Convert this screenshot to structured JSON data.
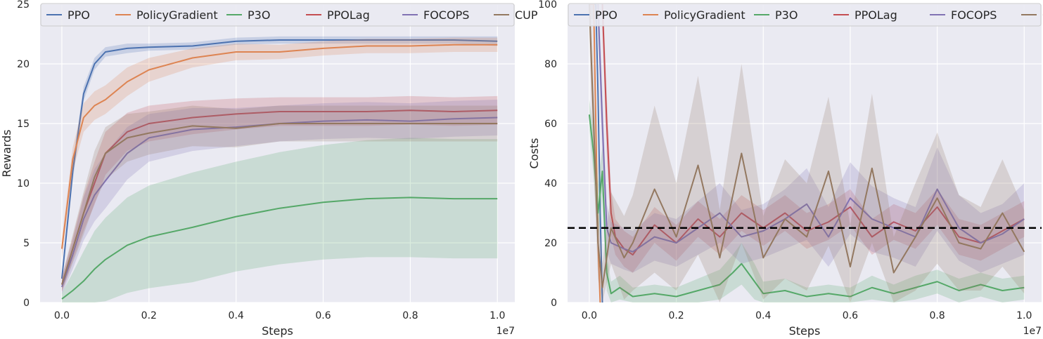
{
  "colors": {
    "PPO": "#4c72b0",
    "PolicyGradient": "#dd8452",
    "P3O": "#55a868",
    "PPOLag": "#c44e52",
    "FOCOPS": "#8172b3",
    "CUP": "#937860",
    "background": "#eaeaf2",
    "grid": "#ffffff",
    "threshold": "#000000"
  },
  "chart_data": [
    {
      "type": "line",
      "xlabel": "Steps",
      "ylabel": "Rewards",
      "x_scale_label": "1e7",
      "xlim": [
        -0.05,
        1.04
      ],
      "ylim": [
        0,
        25
      ],
      "xticks": [
        0.0,
        0.2,
        0.4,
        0.6,
        0.8,
        1.0
      ],
      "xtick_labels": [
        "0.0",
        "0.2",
        "0.4",
        "0.6",
        "0.8",
        "1.0"
      ],
      "yticks": [
        0,
        5,
        10,
        15,
        20,
        25
      ],
      "ytick_labels": [
        "0",
        "5",
        "10",
        "15",
        "20",
        "25"
      ],
      "grid": true,
      "legend_position": "top",
      "x": [
        0.0,
        0.025,
        0.05,
        0.075,
        0.1,
        0.15,
        0.2,
        0.3,
        0.4,
        0.5,
        0.6,
        0.7,
        0.8,
        0.9,
        1.0
      ],
      "series": [
        {
          "name": "PPO",
          "values": [
            2.0,
            11.0,
            17.5,
            20.0,
            21.0,
            21.3,
            21.4,
            21.5,
            21.9,
            22.0,
            22.0,
            22.0,
            22.0,
            22.0,
            21.9
          ],
          "band": [
            0.5,
            0.8,
            0.6,
            0.5,
            0.4,
            0.4,
            0.3,
            0.3,
            0.3,
            0.3,
            0.3,
            0.3,
            0.3,
            0.3,
            0.4
          ]
        },
        {
          "name": "PolicyGradient",
          "values": [
            4.5,
            12.0,
            15.5,
            16.5,
            17.0,
            18.5,
            19.5,
            20.5,
            21.0,
            21.0,
            21.3,
            21.5,
            21.5,
            21.6,
            21.6
          ],
          "band": [
            0.8,
            1.0,
            1.2,
            1.2,
            1.2,
            1.2,
            1.0,
            0.8,
            0.7,
            0.6,
            0.6,
            0.6,
            0.6,
            0.6,
            0.6
          ]
        },
        {
          "name": "P3O",
          "values": [
            0.3,
            1.0,
            1.8,
            2.8,
            3.6,
            4.8,
            5.5,
            6.3,
            7.2,
            7.9,
            8.4,
            8.7,
            8.8,
            8.7,
            8.7
          ],
          "band": [
            0.5,
            1.5,
            2.5,
            3.2,
            3.5,
            4.0,
            4.3,
            4.6,
            4.6,
            4.7,
            4.8,
            4.9,
            5.0,
            5.0,
            5.0
          ]
        },
        {
          "name": "PPOLag",
          "values": [
            1.5,
            4.5,
            7.5,
            10.0,
            12.5,
            14.3,
            15.0,
            15.5,
            15.8,
            16.0,
            16.0,
            16.0,
            16.1,
            16.0,
            16.1
          ],
          "band": [
            0.6,
            1.0,
            1.5,
            1.8,
            1.8,
            1.6,
            1.5,
            1.4,
            1.3,
            1.2,
            1.2,
            1.2,
            1.2,
            1.2,
            1.2
          ]
        },
        {
          "name": "FOCOPS",
          "values": [
            1.3,
            4.0,
            7.0,
            9.0,
            10.2,
            12.5,
            13.8,
            14.5,
            14.7,
            15.0,
            15.2,
            15.3,
            15.2,
            15.4,
            15.5
          ],
          "band": [
            0.6,
            1.2,
            1.8,
            2.2,
            2.3,
            2.2,
            2.0,
            1.8,
            1.6,
            1.5,
            1.5,
            1.5,
            1.5,
            1.5,
            1.5
          ]
        },
        {
          "name": "CUP",
          "values": [
            1.5,
            4.5,
            7.5,
            10.5,
            12.5,
            13.8,
            14.2,
            14.8,
            14.6,
            15.0,
            15.0,
            15.0,
            15.0,
            15.0,
            15.0
          ],
          "band": [
            0.6,
            1.2,
            1.8,
            2.2,
            2.2,
            2.0,
            1.8,
            1.7,
            1.6,
            1.5,
            1.5,
            1.5,
            1.5,
            1.5,
            1.5
          ]
        }
      ]
    },
    {
      "type": "line",
      "xlabel": "Steps",
      "ylabel": "Costs",
      "x_scale_label": "1e7",
      "xlim": [
        -0.05,
        1.04
      ],
      "ylim": [
        0,
        100
      ],
      "xticks": [
        0.0,
        0.2,
        0.4,
        0.6,
        0.8,
        1.0
      ],
      "xtick_labels": [
        "0.0",
        "0.2",
        "0.4",
        "0.6",
        "0.8",
        "1.0"
      ],
      "yticks": [
        0,
        20,
        40,
        60,
        80,
        100
      ],
      "ytick_labels": [
        "0",
        "20",
        "40",
        "60",
        "80",
        "100"
      ],
      "grid": true,
      "legend_position": "top",
      "threshold": 25,
      "series": [
        {
          "name": "PPO",
          "x": [
            0.0,
            0.01,
            0.015,
            0.02,
            0.025,
            0.03
          ],
          "values": [
            100,
            100,
            100,
            70,
            30,
            0
          ],
          "band": [
            5,
            5,
            5,
            8,
            8,
            4
          ]
        },
        {
          "name": "PolicyGradient",
          "x": [
            0.0,
            0.01,
            0.015,
            0.02,
            0.025
          ],
          "values": [
            100,
            100,
            60,
            20,
            0
          ],
          "band": [
            5,
            5,
            8,
            6,
            3
          ]
        },
        {
          "name": "P3O",
          "x": [
            0.0,
            0.01,
            0.02,
            0.03,
            0.04,
            0.05,
            0.07,
            0.1,
            0.15,
            0.2,
            0.25,
            0.3,
            0.33,
            0.35,
            0.38,
            0.4,
            0.45,
            0.5,
            0.55,
            0.6,
            0.65,
            0.7,
            0.75,
            0.8,
            0.85,
            0.9,
            0.95,
            1.0
          ],
          "values": [
            63,
            50,
            30,
            44,
            10,
            3,
            5,
            2,
            3,
            2,
            4,
            6,
            10,
            13,
            7,
            3,
            4,
            2,
            3,
            2,
            5,
            3,
            5,
            7,
            4,
            6,
            4,
            5
          ],
          "band": [
            5,
            8,
            10,
            8,
            6,
            4,
            4,
            3,
            3,
            3,
            4,
            5,
            6,
            7,
            6,
            4,
            4,
            3,
            3,
            3,
            4,
            3,
            4,
            4,
            4,
            4,
            4,
            4
          ]
        },
        {
          "name": "PPOLag",
          "x": [
            0.03,
            0.04,
            0.05,
            0.06,
            0.08,
            0.1,
            0.15,
            0.2,
            0.25,
            0.3,
            0.35,
            0.4,
            0.45,
            0.5,
            0.55,
            0.6,
            0.65,
            0.7,
            0.75,
            0.8,
            0.85,
            0.9,
            0.95,
            1.0
          ],
          "values": [
            100,
            60,
            30,
            22,
            18,
            16,
            26,
            20,
            28,
            22,
            30,
            25,
            30,
            24,
            27,
            32,
            22,
            27,
            24,
            32,
            22,
            20,
            24,
            28
          ],
          "band": [
            8,
            10,
            8,
            6,
            6,
            6,
            6,
            6,
            6,
            6,
            6,
            6,
            6,
            6,
            6,
            6,
            6,
            6,
            6,
            6,
            6,
            6,
            6,
            6
          ]
        },
        {
          "name": "FOCOPS",
          "x": [
            0.02,
            0.03,
            0.04,
            0.05,
            0.08,
            0.1,
            0.15,
            0.2,
            0.25,
            0.3,
            0.35,
            0.4,
            0.45,
            0.5,
            0.55,
            0.6,
            0.65,
            0.7,
            0.75,
            0.8,
            0.85,
            0.9,
            0.95,
            1.0
          ],
          "values": [
            100,
            60,
            25,
            20,
            18,
            17,
            22,
            20,
            25,
            30,
            22,
            24,
            28,
            33,
            22,
            35,
            28,
            25,
            22,
            38,
            25,
            20,
            23,
            28
          ],
          "band": [
            8,
            10,
            8,
            7,
            7,
            7,
            8,
            8,
            9,
            10,
            9,
            9,
            10,
            12,
            10,
            12,
            11,
            10,
            10,
            14,
            11,
            10,
            10,
            12
          ]
        },
        {
          "name": "CUP",
          "x": [
            0.0,
            0.01,
            0.02,
            0.03,
            0.05,
            0.08,
            0.1,
            0.15,
            0.2,
            0.25,
            0.3,
            0.35,
            0.4,
            0.45,
            0.5,
            0.55,
            0.6,
            0.65,
            0.7,
            0.75,
            0.8,
            0.85,
            0.9,
            0.95,
            1.0
          ],
          "values": [
            100,
            60,
            20,
            5,
            25,
            15,
            20,
            38,
            22,
            46,
            15,
            50,
            15,
            28,
            22,
            44,
            12,
            45,
            10,
            22,
            35,
            20,
            18,
            30,
            17
          ],
          "band": [
            10,
            15,
            12,
            8,
            12,
            14,
            16,
            28,
            18,
            30,
            16,
            30,
            14,
            20,
            18,
            25,
            14,
            25,
            12,
            18,
            22,
            16,
            14,
            18,
            14
          ]
        }
      ]
    }
  ]
}
